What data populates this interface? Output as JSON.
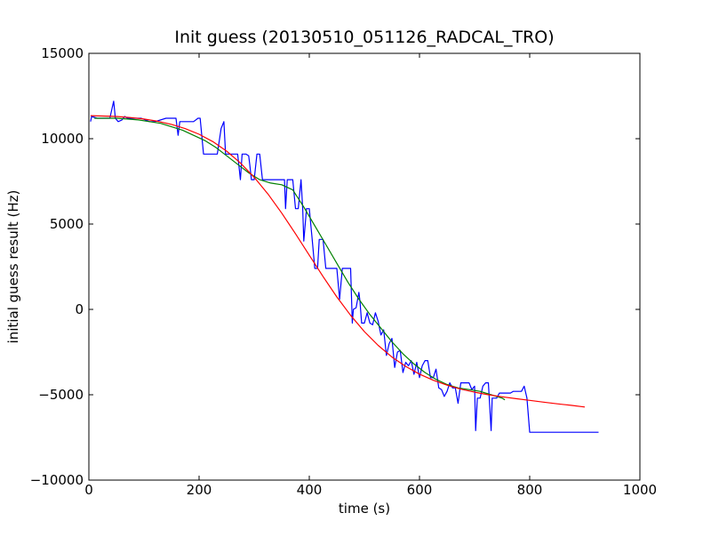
{
  "chart_data": {
    "type": "line",
    "title": "Init guess (20130510_051126_RADCAL_TRO)",
    "xlabel": "time (s)",
    "ylabel": "initial guess result (Hz)",
    "xlim": [
      0,
      1000
    ],
    "ylim": [
      -10000,
      15000
    ],
    "x_ticks": [
      0,
      200,
      400,
      600,
      800,
      1000
    ],
    "x_tick_labels": [
      "0",
      "200",
      "400",
      "600",
      "800",
      "1000"
    ],
    "y_ticks": [
      -10000,
      -5000,
      0,
      5000,
      10000,
      15000
    ],
    "y_tick_labels": [
      "−10000",
      "−5000",
      "0",
      "5000",
      "10000",
      "15000"
    ],
    "grid": false,
    "series": [
      {
        "color": "#0000ff",
        "x": [
          3,
          5,
          15,
          25,
          38,
          45,
          48,
          53,
          60,
          65,
          70,
          80,
          95,
          110,
          120,
          140,
          150,
          158,
          162,
          165,
          170,
          180,
          190,
          198,
          200,
          202,
          208,
          210,
          215,
          230,
          233,
          240,
          245,
          248,
          250,
          252,
          260,
          270,
          275,
          278,
          280,
          285,
          290,
          292,
          295,
          300,
          305,
          310,
          315,
          320,
          325,
          330,
          335,
          340,
          345,
          350,
          355,
          357,
          360,
          368,
          370,
          375,
          380,
          385,
          388,
          390,
          395,
          398,
          400,
          405,
          410,
          415,
          418,
          420,
          425,
          430,
          435,
          440,
          445,
          450,
          455,
          460,
          465,
          470,
          475,
          478,
          480,
          485,
          490,
          492,
          495,
          500,
          505,
          510,
          515,
          520,
          525,
          530,
          535,
          540,
          545,
          550,
          555,
          560,
          565,
          570,
          575,
          580,
          585,
          590,
          595,
          600,
          605,
          610,
          615,
          620,
          625,
          630,
          635,
          640,
          645,
          650,
          655,
          660,
          665,
          670,
          675,
          680,
          685,
          690,
          695,
          700,
          702,
          705,
          710,
          715,
          720,
          725,
          730,
          732,
          735,
          740,
          745,
          750,
          755,
          760,
          765,
          770,
          775,
          780,
          785,
          790,
          795,
          800,
          810,
          900,
          925
        ],
        "y": [
          11000,
          11300,
          11200,
          11200,
          11200,
          12200,
          11200,
          11000,
          11100,
          11300,
          11200,
          11200,
          11200,
          11000,
          11000,
          11200,
          11200,
          11200,
          10200,
          11000,
          11000,
          11000,
          11000,
          11200,
          11200,
          11200,
          9100,
          9100,
          9100,
          9100,
          9100,
          10600,
          11000,
          9100,
          9100,
          9100,
          9100,
          9100,
          7600,
          9100,
          9100,
          9100,
          9000,
          8500,
          7600,
          7600,
          9100,
          9100,
          7600,
          7600,
          7600,
          7600,
          7600,
          7600,
          7600,
          7600,
          7600,
          5900,
          7600,
          7600,
          7600,
          5900,
          5900,
          7600,
          5900,
          4000,
          5900,
          5900,
          5900,
          4200,
          2400,
          2400,
          4100,
          4100,
          4100,
          2400,
          2400,
          2400,
          2400,
          2400,
          600,
          2400,
          2400,
          2400,
          2400,
          -800,
          0,
          100,
          1000,
          500,
          -800,
          -800,
          -200,
          -800,
          -900,
          -200,
          -700,
          -1500,
          -1200,
          -2700,
          -2000,
          -1700,
          -3400,
          -2500,
          -2400,
          -3700,
          -3100,
          -3300,
          -3000,
          -3800,
          -3100,
          -4000,
          -3300,
          -3000,
          -3000,
          -4000,
          -4000,
          -3500,
          -4600,
          -4700,
          -5100,
          -4800,
          -4300,
          -4600,
          -4600,
          -5500,
          -4300,
          -4300,
          -4300,
          -4300,
          -4700,
          -4500,
          -7100,
          -5200,
          -5200,
          -4500,
          -4300,
          -4300,
          -7100,
          -5200,
          -5200,
          -5200,
          -4900,
          -4900,
          -4900,
          -4900,
          -4900,
          -4800,
          -4800,
          -4800,
          -4800,
          -4500,
          -5200,
          -7200,
          -7200,
          -7200,
          -7200
        ]
      },
      {
        "color": "#008000",
        "x": [
          10,
          30,
          50,
          70,
          90,
          110,
          130,
          150,
          170,
          190,
          210,
          230,
          250,
          270,
          290,
          310,
          330,
          350,
          370,
          390,
          410,
          430,
          450,
          470,
          490,
          510,
          530,
          550,
          570,
          590,
          610,
          630,
          650,
          670,
          690,
          710,
          730,
          750,
          755
        ],
        "y": [
          11200,
          11200,
          11200,
          11150,
          11100,
          11000,
          10900,
          10700,
          10500,
          10200,
          9900,
          9500,
          9000,
          8500,
          8000,
          7600,
          7400,
          7300,
          7000,
          6000,
          4900,
          3800,
          2700,
          1600,
          600,
          -300,
          -1100,
          -1900,
          -2600,
          -3200,
          -3700,
          -4100,
          -4400,
          -4600,
          -4700,
          -4800,
          -5000,
          -5200,
          -5300
        ]
      },
      {
        "color": "#ff0000",
        "x": [
          3,
          25,
          50,
          75,
          100,
          125,
          150,
          175,
          200,
          225,
          250,
          275,
          300,
          325,
          350,
          375,
          400,
          425,
          450,
          475,
          500,
          525,
          550,
          575,
          600,
          625,
          650,
          675,
          700,
          725,
          750,
          775,
          800,
          825,
          850,
          875,
          900
        ],
        "y": [
          11350,
          11330,
          11300,
          11240,
          11150,
          11020,
          10840,
          10590,
          10260,
          9830,
          9270,
          8580,
          7740,
          6760,
          5640,
          4430,
          3170,
          1920,
          730,
          -350,
          -1300,
          -2110,
          -2790,
          -3340,
          -3790,
          -4150,
          -4440,
          -4670,
          -4850,
          -5000,
          -5120,
          -5230,
          -5330,
          -5430,
          -5530,
          -5620,
          -5720
        ]
      }
    ]
  }
}
